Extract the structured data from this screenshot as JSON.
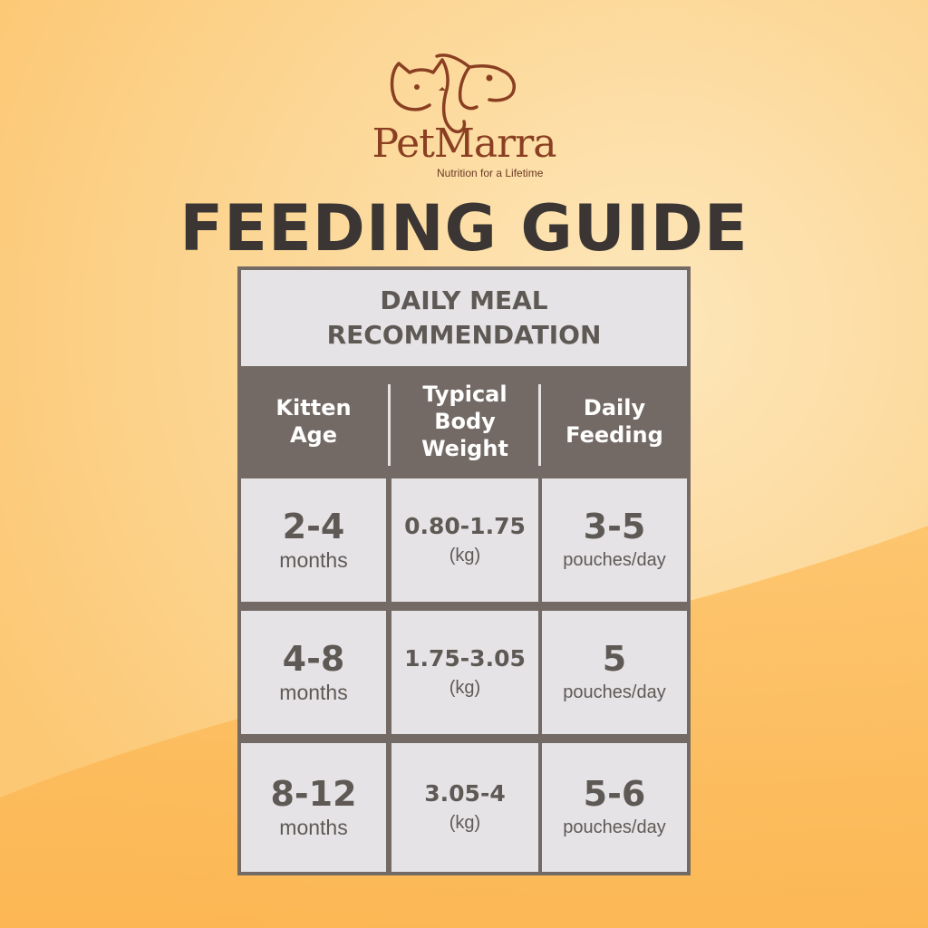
{
  "brand": {
    "name": "PetMarra",
    "tagline": "Nutrition for a Lifetime",
    "logo_icon": "cat-and-dog-outline-icon",
    "color": "#8a3f22"
  },
  "title": "FEEDING GUIDE",
  "table": {
    "heading": "DAILY MEAL\nRECOMMENDATION",
    "columns": [
      "Kitten\nAge",
      "Typical\nBody\nWeight",
      "Daily\nFeeding"
    ],
    "rows": [
      {
        "age": "2-4",
        "age_unit": "months",
        "weight": "0.80-1.75",
        "weight_unit": "(kg)",
        "feeding": "3-5",
        "feeding_unit": "pouches/day"
      },
      {
        "age": "4-8",
        "age_unit": "months",
        "weight": "1.75-3.05",
        "weight_unit": "(kg)",
        "feeding": "5",
        "feeding_unit": "pouches/day"
      },
      {
        "age": "8-12",
        "age_unit": "months",
        "weight": "3.05-4",
        "weight_unit": "(kg)",
        "feeding": "5-6",
        "feeding_unit": "pouches/day"
      }
    ]
  },
  "colors": {
    "background_light": "#fde3b0",
    "background_orange": "#fdbb5e",
    "table_border": "#746a65",
    "cell_fill": "#e5e3e6",
    "title_text": "#3b3634"
  }
}
